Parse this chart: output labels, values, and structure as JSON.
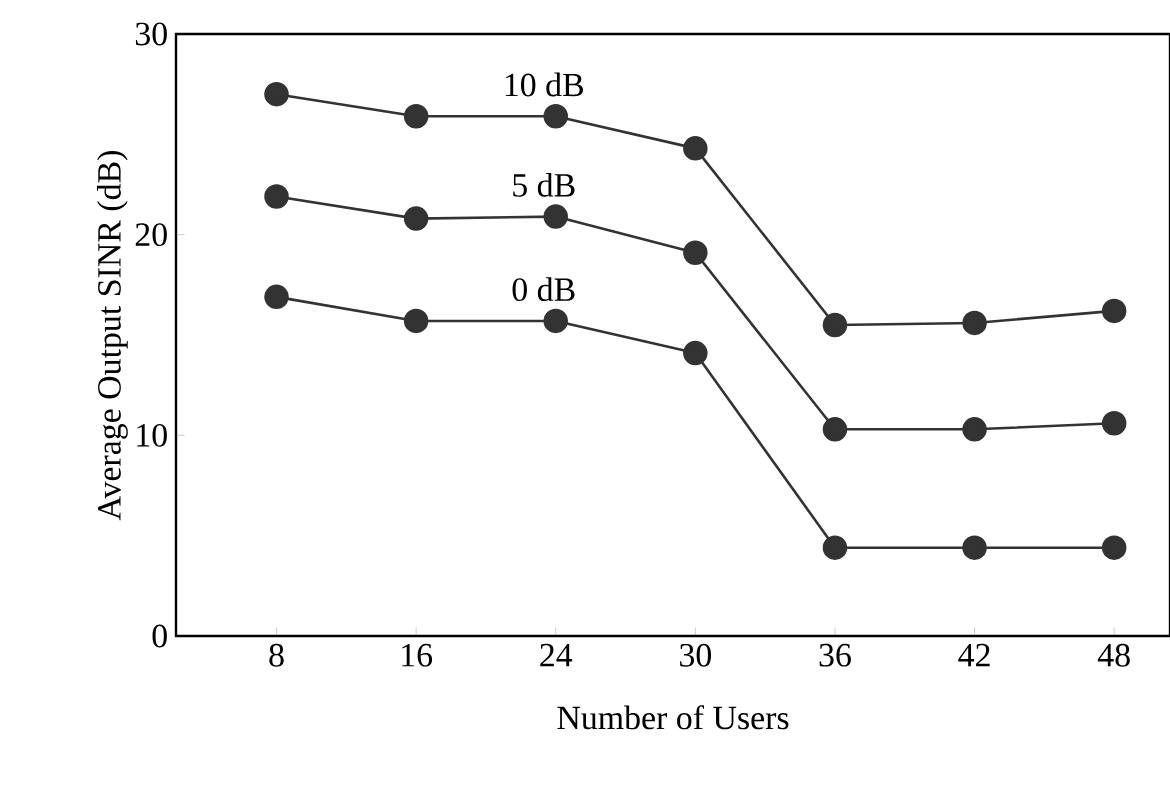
{
  "chart_data": {
    "type": "line",
    "xlabel": "Number of Users",
    "ylabel": "Average Output SINR (dB)",
    "categories": [
      "8",
      "16",
      "24",
      "30",
      "36",
      "42",
      "48"
    ],
    "ylim": [
      0,
      30
    ],
    "yticks": [
      0,
      10,
      20,
      30
    ],
    "grid": false,
    "legend": false,
    "marker": "circle",
    "line_style": "solid",
    "series": [
      {
        "name": "10 dB",
        "color": "#333333",
        "values": [
          27,
          25.9,
          25.9,
          24.3,
          15.5,
          15.6,
          16.2
        ]
      },
      {
        "name": "5 dB",
        "color": "#333333",
        "values": [
          21.9,
          20.8,
          20.9,
          19.1,
          10.3,
          10.3,
          10.6
        ]
      },
      {
        "name": "0 dB",
        "color": "#333333",
        "values": [
          16.9,
          15.7,
          15.7,
          14.1,
          4.4,
          4.4,
          4.4
        ]
      }
    ]
  }
}
